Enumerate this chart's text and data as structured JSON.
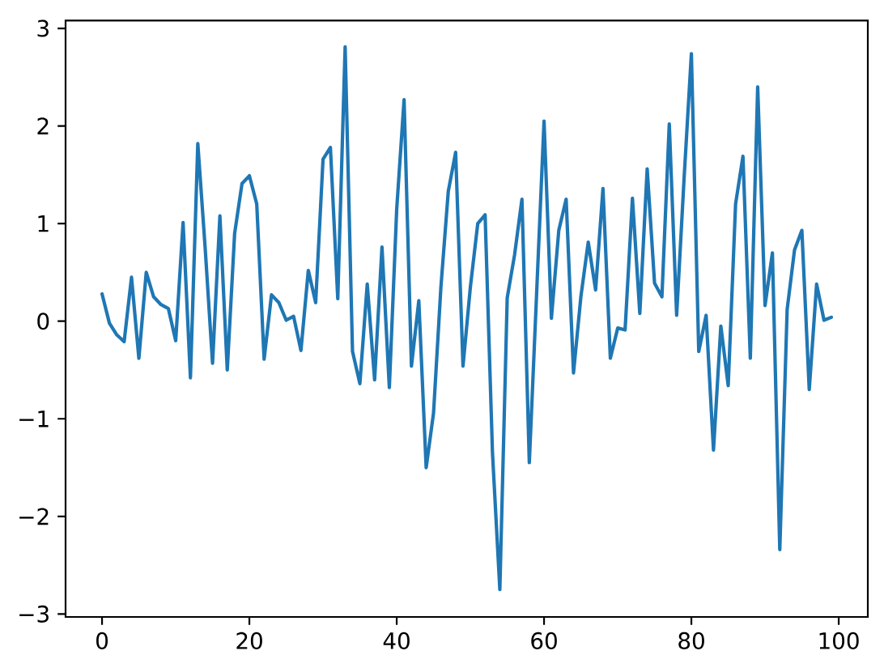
{
  "chart_data": {
    "type": "line",
    "x": [
      0,
      1,
      2,
      3,
      4,
      5,
      6,
      7,
      8,
      9,
      10,
      11,
      12,
      13,
      14,
      15,
      16,
      17,
      18,
      19,
      20,
      21,
      22,
      23,
      24,
      25,
      26,
      27,
      28,
      29,
      30,
      31,
      32,
      33,
      34,
      35,
      36,
      37,
      38,
      39,
      40,
      41,
      42,
      43,
      44,
      45,
      46,
      47,
      48,
      49,
      50,
      51,
      52,
      53,
      54,
      55,
      56,
      57,
      58,
      59,
      60,
      61,
      62,
      63,
      64,
      65,
      66,
      67,
      68,
      69,
      70,
      71,
      72,
      73,
      74,
      75,
      76,
      77,
      78,
      79,
      80,
      81,
      82,
      83,
      84,
      85,
      86,
      87,
      88,
      89,
      90,
      91,
      92,
      93,
      94,
      95,
      96,
      97,
      98,
      99
    ],
    "values": [
      0.28,
      -0.02,
      -0.14,
      -0.21,
      0.45,
      -0.38,
      0.5,
      0.25,
      0.17,
      0.13,
      -0.2,
      1.01,
      -0.58,
      1.82,
      0.75,
      -0.43,
      1.08,
      -0.5,
      0.9,
      1.41,
      1.49,
      1.2,
      -0.39,
      0.27,
      0.19,
      0.01,
      0.05,
      -0.3,
      0.52,
      0.19,
      1.66,
      1.78,
      0.23,
      2.81,
      -0.31,
      -0.64,
      0.38,
      -0.6,
      0.76,
      -0.68,
      1.15,
      2.27,
      -0.46,
      0.21,
      -1.5,
      -0.94,
      0.35,
      1.33,
      1.73,
      -0.46,
      0.35,
      1.0,
      1.09,
      -1.35,
      -2.75,
      0.24,
      0.68,
      1.25,
      -1.45,
      0.3,
      2.05,
      0.03,
      0.93,
      1.25,
      -0.53,
      0.25,
      0.81,
      0.32,
      1.36,
      -0.38,
      -0.07,
      -0.09,
      1.26,
      0.08,
      1.56,
      0.39,
      0.25,
      2.02,
      0.06,
      1.45,
      2.74,
      -0.31,
      0.06,
      -1.32,
      -0.05,
      -0.66,
      1.2,
      1.69,
      -0.38,
      2.4,
      0.16,
      0.7,
      -2.34,
      0.12,
      0.73,
      0.93,
      -0.7,
      0.38,
      0.01,
      0.04
    ],
    "color": "#1f77b4",
    "line_style": "solid",
    "xlim": [
      -4.95,
      103.95
    ],
    "ylim": [
      -3.03,
      3.08
    ],
    "xticks": [
      0,
      20,
      40,
      60,
      80,
      100
    ],
    "yticks": [
      {
        "value": -3,
        "label": "−3"
      },
      {
        "value": -2,
        "label": "−2"
      },
      {
        "value": -1,
        "label": "−1"
      },
      0,
      1,
      2,
      3
    ]
  }
}
